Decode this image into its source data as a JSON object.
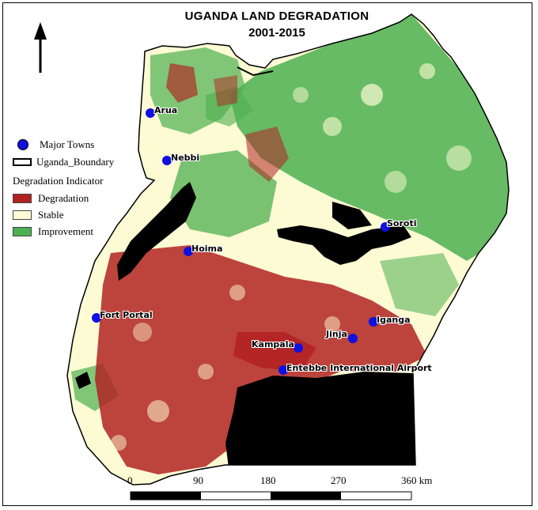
{
  "title_line1": "UGANDA LAND DEGRADATION",
  "title_line2": "2001-2015",
  "north_arrow": "north-arrow",
  "legend": {
    "major_towns": "Major Towns",
    "boundary": "Uganda_Boundary",
    "indicator_title": "Degradation Indicator",
    "degradation": "Degradation",
    "stable": "Stable",
    "improvement": "Improvement"
  },
  "colors": {
    "degradation": "#b22222",
    "stable": "#fdfbd4",
    "improvement": "#4caf50",
    "water": "#000000",
    "town": "#1010e0"
  },
  "towns": {
    "arua": "Arua",
    "nebbi": "Nebbi",
    "soroti": "Soroti",
    "hoima": "Hoima",
    "fort_portal": "Fort Portal",
    "iganga": "Iganga",
    "jinja": "Jinja",
    "kampala": "Kampala",
    "entebbe": "Entebbe International Airport"
  },
  "scale": {
    "l0": "0",
    "l90": "90",
    "l180": "180",
    "l270": "270",
    "l360": "360 km"
  }
}
